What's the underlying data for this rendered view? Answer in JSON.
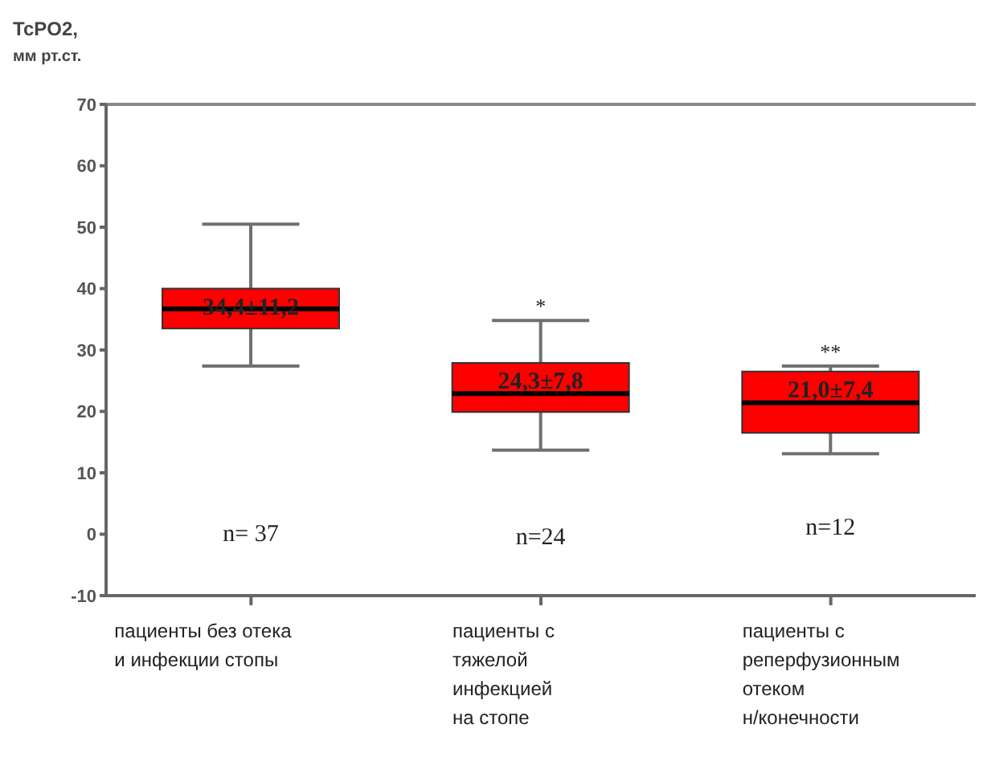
{
  "chart_data": {
    "type": "box",
    "ylabel": "TcPO2,\nмм рт.ст.",
    "categories": [
      "пациенты без отека\nи инфекции стопы",
      "пациенты с\nтяжелой\nинфекцией\nна стопе",
      "пациенты с\nреперфузионным\nотеком\nн/конечности"
    ],
    "series": [
      {
        "color": "#ff0000",
        "boxes": [
          {
            "low": 27.4,
            "q1": 33.5,
            "median": 36.7,
            "q3": 40.0,
            "high": 50.5
          },
          {
            "low": 13.7,
            "q1": 19.9,
            "median": 22.9,
            "q3": 27.9,
            "high": 34.8
          },
          {
            "low": 13.1,
            "q1": 16.5,
            "median": 21.4,
            "q3": 26.5,
            "high": 27.4
          }
        ]
      }
    ],
    "ylim": [
      -10,
      70
    ],
    "yticks": [
      -10,
      0,
      10,
      20,
      30,
      40,
      50,
      60,
      70
    ],
    "annotations": [
      "34,4±11,2",
      "24,3±7,8",
      "21,0±7,4",
      "*",
      "**",
      "n= 37",
      "n=24",
      "n=12"
    ]
  }
}
